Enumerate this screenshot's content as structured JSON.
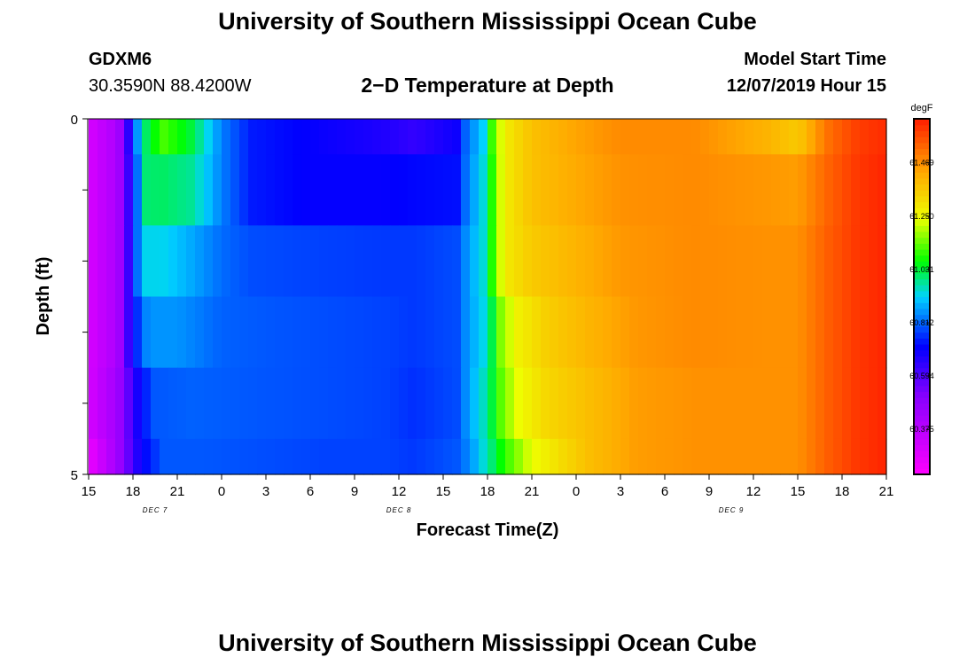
{
  "header": {
    "title": "University of Southern Mississippi Ocean Cube",
    "station_id": "GDXM6",
    "coordinates": "30.3590N 88.4200W",
    "plot_title": "2−D Temperature at Depth",
    "model_start_label": "Model Start Time",
    "model_start_value": "12/07/2019 Hour 15"
  },
  "footer": {
    "title": "University of Southern Mississippi Ocean Cube"
  },
  "chart_data": {
    "type": "heatmap",
    "title": "2−D Temperature at Depth",
    "xlabel": "Forecast Time(Z)",
    "ylabel": "Depth (ft)",
    "x_tick_labels": [
      "15",
      "18",
      "21",
      "0",
      "3",
      "6",
      "9",
      "12",
      "15",
      "18",
      "21",
      "0",
      "3",
      "6",
      "9",
      "12",
      "15",
      "18",
      "21"
    ],
    "day_labels": [
      {
        "label": "DEC 7",
        "at_tick": 1.5
      },
      {
        "label": "DEC 8",
        "at_tick": 7
      },
      {
        "label": "DEC 9",
        "at_tick": 14.5
      }
    ],
    "x_range_hours": [
      0,
      54
    ],
    "y_tick_labels": [
      "0",
      "5"
    ],
    "ylim": [
      0,
      5
    ],
    "colorbar": {
      "unit": "degF",
      "min": 60.19,
      "max": 61.65,
      "ticks": [
        "61.469",
        "61.250",
        "61.031",
        "60.812",
        "60.594",
        "60.375"
      ],
      "tick_values": [
        61.469,
        61.25,
        61.031,
        60.812,
        60.594,
        60.375
      ]
    },
    "depth_layers": [
      {
        "depth_range": [
          0,
          0.5
        ],
        "profile": [
          [
            0,
            60.3
          ],
          [
            2,
            60.42
          ],
          [
            3,
            60.75
          ],
          [
            3.6,
            60.98
          ],
          [
            5,
            61.12
          ],
          [
            7,
            61.03
          ],
          [
            9,
            60.84
          ],
          [
            11,
            60.74
          ],
          [
            15,
            60.71
          ],
          [
            20,
            60.67
          ],
          [
            22,
            60.64
          ],
          [
            25,
            60.7
          ],
          [
            25.5,
            60.81
          ],
          [
            26.8,
            60.93
          ],
          [
            27.5,
            61.18
          ],
          [
            28.5,
            61.3
          ],
          [
            30,
            61.38
          ],
          [
            33,
            61.44
          ],
          [
            36,
            61.48
          ],
          [
            41,
            61.48
          ],
          [
            46,
            61.41
          ],
          [
            48,
            61.36
          ],
          [
            50,
            61.52
          ],
          [
            52,
            61.6
          ],
          [
            54,
            61.63
          ]
        ]
      },
      {
        "depth_range": [
          0.5,
          1.5
        ],
        "profile": [
          [
            0,
            60.3
          ],
          [
            2,
            60.42
          ],
          [
            3,
            60.72
          ],
          [
            3.8,
            61.0
          ],
          [
            5,
            61.01
          ],
          [
            7,
            60.98
          ],
          [
            9,
            60.84
          ],
          [
            11,
            60.74
          ],
          [
            15,
            60.71
          ],
          [
            20,
            60.71
          ],
          [
            22,
            60.72
          ],
          [
            25,
            60.73
          ],
          [
            25.5,
            60.82
          ],
          [
            26.8,
            60.95
          ],
          [
            27.7,
            61.2
          ],
          [
            28.5,
            61.3
          ],
          [
            30,
            61.38
          ],
          [
            33,
            61.43
          ],
          [
            36,
            61.47
          ],
          [
            41,
            61.48
          ],
          [
            46,
            61.46
          ],
          [
            48,
            61.45
          ],
          [
            50,
            61.54
          ],
          [
            52,
            61.61
          ],
          [
            54,
            61.64
          ]
        ]
      },
      {
        "depth_range": [
          1.5,
          2.5
        ],
        "profile": [
          [
            0,
            60.3
          ],
          [
            2,
            60.42
          ],
          [
            3,
            60.72
          ],
          [
            3.6,
            60.93
          ],
          [
            5,
            60.93
          ],
          [
            7,
            60.88
          ],
          [
            9,
            60.82
          ],
          [
            11,
            60.79
          ],
          [
            15,
            60.78
          ],
          [
            20,
            60.77
          ],
          [
            22,
            60.77
          ],
          [
            25,
            60.79
          ],
          [
            25.5,
            60.85
          ],
          [
            26.8,
            60.95
          ],
          [
            27.7,
            61.2
          ],
          [
            28.5,
            61.3
          ],
          [
            30,
            61.36
          ],
          [
            33,
            61.41
          ],
          [
            36,
            61.46
          ],
          [
            41,
            61.48
          ],
          [
            46,
            61.47
          ],
          [
            48,
            61.47
          ],
          [
            50,
            61.55
          ],
          [
            52,
            61.61
          ],
          [
            54,
            61.64
          ]
        ]
      },
      {
        "depth_range": [
          2.5,
          3.5
        ],
        "profile": [
          [
            0,
            60.3
          ],
          [
            2,
            60.42
          ],
          [
            3,
            60.72
          ],
          [
            4,
            60.86
          ],
          [
            6,
            60.86
          ],
          [
            9,
            60.81
          ],
          [
            12,
            60.8
          ],
          [
            16,
            60.79
          ],
          [
            20,
            60.78
          ],
          [
            22,
            60.77
          ],
          [
            25,
            60.79
          ],
          [
            25.5,
            60.85
          ],
          [
            27,
            60.95
          ],
          [
            27.8,
            61.15
          ],
          [
            29,
            61.27
          ],
          [
            31,
            61.35
          ],
          [
            34,
            61.41
          ],
          [
            37,
            61.46
          ],
          [
            41,
            61.48
          ],
          [
            46,
            61.47
          ],
          [
            48,
            61.47
          ],
          [
            50,
            61.55
          ],
          [
            52,
            61.61
          ],
          [
            54,
            61.64
          ]
        ]
      },
      {
        "depth_range": [
          3.5,
          4.5
        ],
        "profile": [
          [
            0,
            60.3
          ],
          [
            2,
            60.45
          ],
          [
            3.5,
            60.72
          ],
          [
            4.5,
            60.8
          ],
          [
            7,
            60.81
          ],
          [
            11,
            60.8
          ],
          [
            16,
            60.79
          ],
          [
            20,
            60.78
          ],
          [
            22,
            60.76
          ],
          [
            25,
            60.79
          ],
          [
            25.5,
            60.85
          ],
          [
            27,
            60.98
          ],
          [
            27.8,
            61.12
          ],
          [
            29,
            61.24
          ],
          [
            31,
            61.33
          ],
          [
            34,
            61.39
          ],
          [
            37,
            61.45
          ],
          [
            41,
            61.47
          ],
          [
            46,
            61.47
          ],
          [
            48,
            61.47
          ],
          [
            50,
            61.55
          ],
          [
            52,
            61.61
          ],
          [
            54,
            61.64
          ]
        ]
      },
      {
        "depth_range": [
          4.5,
          5
        ],
        "profile": [
          [
            0,
            60.24
          ],
          [
            2,
            60.45
          ],
          [
            3.5,
            60.7
          ],
          [
            5,
            60.8
          ],
          [
            8,
            60.8
          ],
          [
            12,
            60.79
          ],
          [
            16,
            60.78
          ],
          [
            20,
            60.78
          ],
          [
            22,
            60.77
          ],
          [
            25,
            60.8
          ],
          [
            26,
            60.87
          ],
          [
            27.3,
            61.0
          ],
          [
            28.2,
            61.1
          ],
          [
            30,
            61.24
          ],
          [
            32,
            61.32
          ],
          [
            34,
            61.39
          ],
          [
            37,
            61.45
          ],
          [
            41,
            61.47
          ],
          [
            46,
            61.47
          ],
          [
            48,
            61.47
          ],
          [
            50,
            61.55
          ],
          [
            52,
            61.61
          ],
          [
            54,
            61.64
          ]
        ]
      }
    ]
  }
}
